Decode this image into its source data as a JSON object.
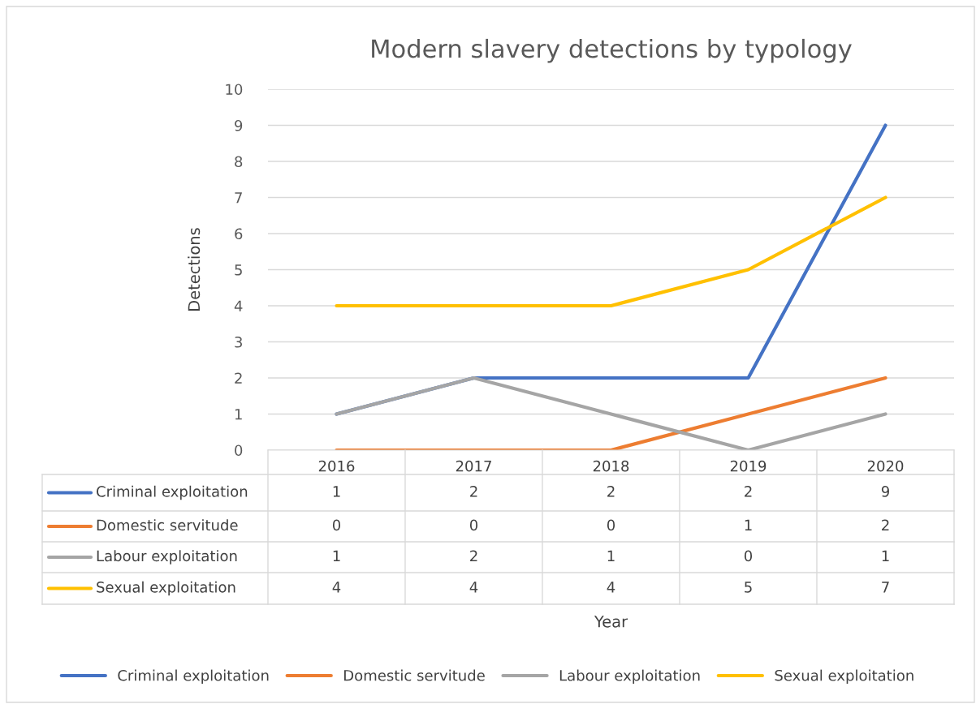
{
  "chart_data": {
    "type": "line",
    "title": "Modern slavery detections by typology",
    "ylabel": "Detections",
    "annotations": [
      "Year"
    ],
    "categories": [
      "2016",
      "2017",
      "2018",
      "2019",
      "2020"
    ],
    "series": [
      {
        "name": "Criminal exploitation",
        "color": "#4472c4",
        "values": [
          1,
          2,
          2,
          2,
          9
        ]
      },
      {
        "name": "Domestic servitude",
        "color": "#ed7d31",
        "values": [
          0,
          0,
          0,
          1,
          2
        ]
      },
      {
        "name": "Labour exploitation",
        "color": "#a5a5a5",
        "values": [
          1,
          2,
          1,
          0,
          1
        ]
      },
      {
        "name": "Sexual exploitation",
        "color": "#ffc000",
        "values": [
          4,
          4,
          4,
          5,
          7
        ]
      }
    ],
    "ylim": [
      0,
      10
    ],
    "yticks": [
      0,
      1,
      2,
      3,
      4,
      5,
      6,
      7,
      8,
      9,
      10
    ],
    "grid": "y",
    "legend": "bottom",
    "marker": "none",
    "line_style": "solid",
    "data_labels": true
  }
}
